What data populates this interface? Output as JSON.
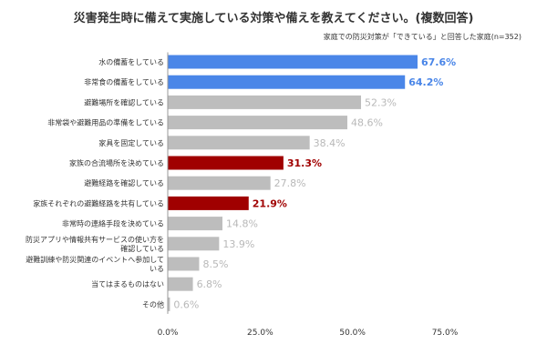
{
  "colors": {
    "blue": "#4a86e8",
    "gray": "#bdbdbd",
    "red": "#a00000",
    "blue_label": "#4a86e8",
    "red_label": "#a00000",
    "gray_label": "#b8b8b8",
    "axis": "#999999"
  },
  "chart_data": {
    "type": "bar",
    "orientation": "horizontal",
    "title": "災害発生時に備えて実施している対策や備えを教えてください。(複数回答)",
    "subtitle": "家庭での防災対策が「できている」と回答した家庭(n=352)",
    "categories": [
      "水の備蓄をしている",
      "非常食の備蓄をしている",
      "避難場所を確認している",
      "非常袋や避難用品の準備をしている",
      "家具を固定している",
      "家族の合流場所を決めている",
      "避難経路を確認している",
      "家族それぞれの避難経路を共有している",
      "非常時の連絡手段を決めている",
      "防災アプリや情報共有サービスの使い方を確認している",
      "避難訓練や防災関連のイベントへ参加している",
      "当てはまるものはない",
      "その他"
    ],
    "category_lines": [
      [
        "水の備蓄をしている"
      ],
      [
        "非常食の備蓄をしている"
      ],
      [
        "避難場所を確認している"
      ],
      [
        "非常袋や避難用品の準備をしている"
      ],
      [
        "家具を固定している"
      ],
      [
        "家族の合流場所を決めている"
      ],
      [
        "避難経路を確認している"
      ],
      [
        "家族それぞれの避難経路を共有している"
      ],
      [
        "非常時の連絡手段を決めている"
      ],
      [
        "防災アプリや情報共有サービスの使い方を",
        "確認している"
      ],
      [
        "避難訓練や防災関連のイベントへ参加して",
        "いる"
      ],
      [
        "当てはまるものはない"
      ],
      [
        "その他"
      ]
    ],
    "values": [
      67.6,
      64.2,
      52.3,
      48.6,
      38.4,
      31.3,
      27.8,
      21.9,
      14.8,
      13.9,
      8.5,
      6.8,
      0.6
    ],
    "value_labels": [
      "67.6%",
      "64.2%",
      "52.3%",
      "48.6%",
      "38.4%",
      "31.3%",
      "27.8%",
      "21.9%",
      "14.8%",
      "13.9%",
      "8.5%",
      "6.8%",
      "0.6%"
    ],
    "bar_colors": [
      "blue",
      "blue",
      "gray",
      "gray",
      "gray",
      "red",
      "gray",
      "red",
      "gray",
      "gray",
      "gray",
      "gray",
      "gray"
    ],
    "xlim": [
      0,
      75
    ],
    "xticks": [
      0,
      25,
      50,
      75
    ],
    "xtick_labels": [
      "0.0%",
      "25.0%",
      "50.0%",
      "75.0%"
    ],
    "grid": false,
    "legend": "none"
  }
}
